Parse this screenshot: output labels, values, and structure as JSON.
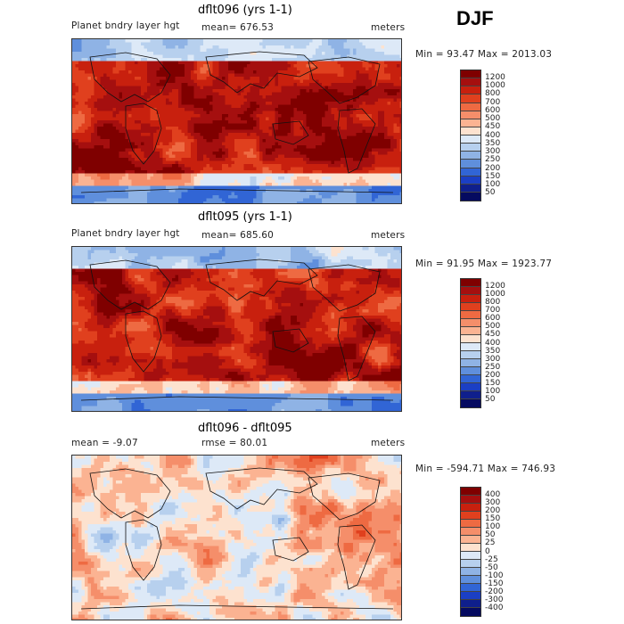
{
  "season": "DJF",
  "panels": [
    {
      "title": "dflt096 (yrs 1-1)",
      "left_label": "Planet bndry layer hgt",
      "center_label": "mean= 676.53",
      "units": "meters",
      "minmax": "Min =   93.47 Max = 2013.03",
      "palette": "warm",
      "levels": [
        "1200",
        "1000",
        "800",
        "700",
        "600",
        "500",
        "450",
        "400",
        "350",
        "300",
        "250",
        "200",
        "150",
        "100",
        "50"
      ],
      "colors": [
        "#7f0000",
        "#a50f0f",
        "#c8200e",
        "#e0401e",
        "#ee6a42",
        "#f58e6a",
        "#fbb392",
        "#fde2cf",
        "#dde9f7",
        "#b7d0ee",
        "#8fb3e5",
        "#5f8fdc",
        "#3165d5",
        "#1b3fc4",
        "#0f1f8c",
        "#050a60"
      ]
    },
    {
      "title": "dflt095 (yrs 1-1)",
      "left_label": "Planet bndry layer hgt",
      "center_label": "mean= 685.60",
      "units": "meters",
      "minmax": "Min =   91.95 Max = 1923.77",
      "palette": "warm",
      "levels": [
        "1200",
        "1000",
        "800",
        "700",
        "600",
        "500",
        "450",
        "400",
        "350",
        "300",
        "250",
        "200",
        "150",
        "100",
        "50"
      ],
      "colors": [
        "#7f0000",
        "#a50f0f",
        "#c8200e",
        "#e0401e",
        "#ee6a42",
        "#f58e6a",
        "#fbb392",
        "#fde2cf",
        "#dde9f7",
        "#b7d0ee",
        "#8fb3e5",
        "#5f8fdc",
        "#3165d5",
        "#1b3fc4",
        "#0f1f8c",
        "#050a60"
      ]
    },
    {
      "title": "dflt096 - dflt095",
      "left_label": "mean =   -9.07",
      "center_label": "rmse =   80.01",
      "units": "meters",
      "minmax": "Min = -594.71 Max =  746.93",
      "palette": "diff",
      "levels": [
        "400",
        "300",
        "200",
        "150",
        "100",
        "50",
        "25",
        "0",
        "-25",
        "-50",
        "-100",
        "-150",
        "-200",
        "-300",
        "-400"
      ],
      "colors": [
        "#7f0000",
        "#a50f0f",
        "#c8200e",
        "#e0401e",
        "#ee6a42",
        "#f58e6a",
        "#fbb392",
        "#fde2cf",
        "#dde9f7",
        "#b7d0ee",
        "#8fb3e5",
        "#5f8fdc",
        "#3165d5",
        "#1b3fc4",
        "#0f1f8c",
        "#050a60"
      ]
    }
  ]
}
